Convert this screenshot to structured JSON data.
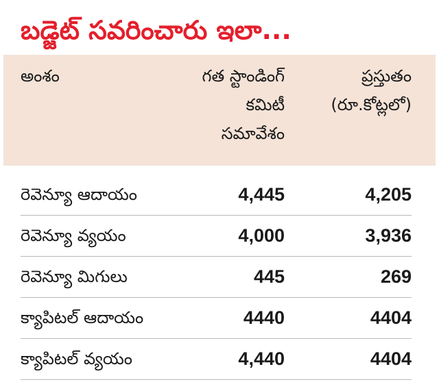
{
  "title": "బడ్జెట్ సవరించారు ఇలా...",
  "columns": {
    "item": "అంశం",
    "previous": [
      "గత స్టాండింగ్",
      "కమిటీ",
      "సమావేశం"
    ],
    "current": [
      "ప్రస్తుతం",
      "(రూ.కోట్లలో)"
    ]
  },
  "rows": [
    {
      "label": "రెవెన్యూ ఆదాయం",
      "previous": "4,445",
      "current": "4,205"
    },
    {
      "label": "రెవెన్యూ వ్యయం",
      "previous": "4,000",
      "current": "3,936"
    },
    {
      "label": "రెవెన్యూ మిగులు",
      "previous": "445",
      "current": "269"
    },
    {
      "label": "క్యాపిటల్ ఆదాయం",
      "previous": "4440",
      "current": "4404"
    },
    {
      "label": "క్యాపిటల్ వ్యయం",
      "previous": "4,440",
      "current": "4404"
    }
  ],
  "colors": {
    "title": "#e41f2c",
    "header_background": "#f5e3d8",
    "divider": "#b9b9b9"
  }
}
